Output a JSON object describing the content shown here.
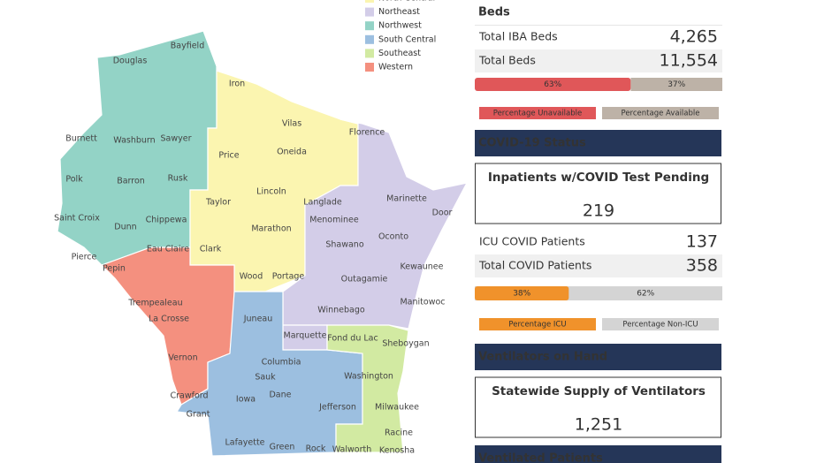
{
  "map": {
    "legend": [
      {
        "label": "North Central",
        "color": "#fbf5b0"
      },
      {
        "label": "Northeast",
        "color": "#d3cde8"
      },
      {
        "label": "Northwest",
        "color": "#93d3c6"
      },
      {
        "label": "South Central",
        "color": "#9cbfe0"
      },
      {
        "label": "Southeast",
        "color": "#d2eaa2"
      },
      {
        "label": "Western",
        "color": "#f4907f"
      }
    ],
    "counties": [
      "Bayfield",
      "Douglas",
      "Iron",
      "Vilas",
      "Florence",
      "Burnett",
      "Washburn",
      "Sawyer",
      "Price",
      "Oneida",
      "Polk",
      "Barron",
      "Rusk",
      "Taylor",
      "Lincoln",
      "Langlade",
      "Marinette",
      "Door",
      "Menominee",
      "Saint Croix",
      "Dunn",
      "Chippewa",
      "Marathon",
      "Shawano",
      "Oconto",
      "Eau Claire",
      "Clark",
      "Pierce",
      "Pepin",
      "Kewaunee",
      "Wood",
      "Portage",
      "Outagamie",
      "Manitowoc",
      "Trempealeau",
      "Winnebago",
      "La Crosse",
      "Juneau",
      "Marquette",
      "Fond du Lac",
      "Sheboygan",
      "Vernon",
      "Columbia",
      "Sauk",
      "Washington",
      "Dane",
      "Crawford",
      "Iowa",
      "Jefferson",
      "Milwaukee",
      "Grant",
      "Racine",
      "Lafayette",
      "Green",
      "Rock",
      "Walworth",
      "Kenosha"
    ]
  },
  "beds": {
    "title": "Beds",
    "rows": [
      {
        "label": "Total IBA Beds",
        "value": "4,265"
      },
      {
        "label": "Total Beds",
        "value": "11,554"
      }
    ],
    "bar": {
      "values": [
        63,
        37
      ],
      "value_labels": [
        "63%",
        "37%"
      ],
      "colors": [
        "#e05759",
        "#bdb2a7"
      ],
      "legend": [
        "Percentage Unavailable",
        "Percentage Available"
      ]
    }
  },
  "covid": {
    "title": "COVID-19 Status",
    "box": {
      "label": "Inpatients w/COVID Test Pending",
      "value": "219"
    },
    "rows": [
      {
        "label": "ICU COVID Patients",
        "value": "137"
      },
      {
        "label": "Total COVID Patients",
        "value": "358"
      }
    ],
    "bar": {
      "values": [
        38,
        62
      ],
      "value_labels": [
        "38%",
        "62%"
      ],
      "colors": [
        "#f0922b",
        "#d4d4d4"
      ],
      "legend": [
        "Percentage ICU",
        "Percentage Non-ICU"
      ]
    }
  },
  "ventilators": {
    "title": "Ventilators on Hand",
    "box": {
      "label": "Statewide Supply of Ventilators",
      "value": "1,251"
    }
  },
  "ventilated": {
    "title": "Ventilated Patients"
  }
}
